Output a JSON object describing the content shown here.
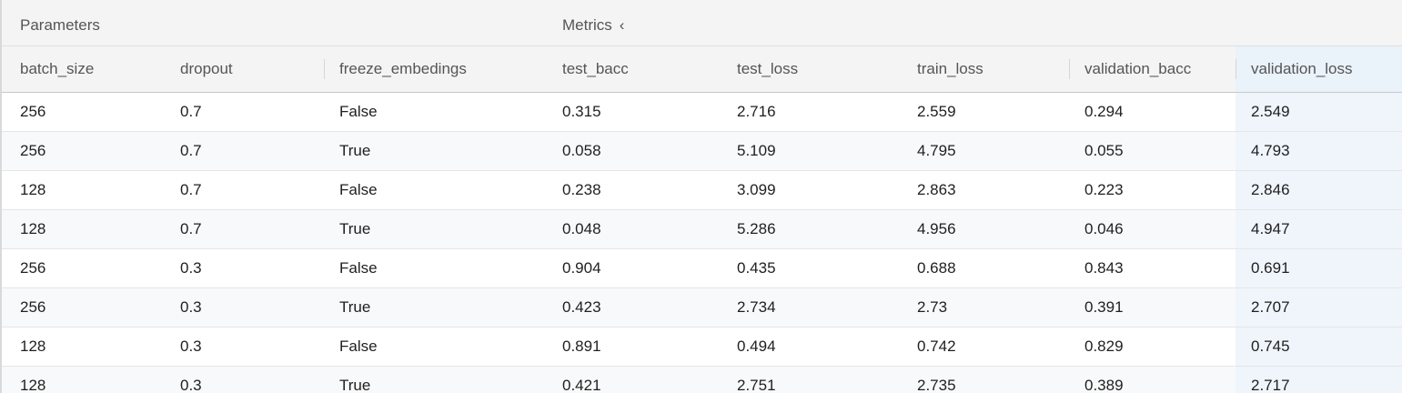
{
  "groups": {
    "parameters": "Parameters",
    "metrics": "Metrics",
    "metrics_toggle_icon": "chevron-left-icon"
  },
  "columns": [
    "batch_size",
    "dropout",
    "freeze_embedings",
    "test_bacc",
    "test_loss",
    "train_loss",
    "validation_bacc",
    "validation_loss"
  ],
  "rows": [
    [
      "256",
      "0.7",
      "False",
      "0.315",
      "2.716",
      "2.559",
      "0.294",
      "2.549"
    ],
    [
      "256",
      "0.7",
      "True",
      "0.058",
      "5.109",
      "4.795",
      "0.055",
      "4.793"
    ],
    [
      "128",
      "0.7",
      "False",
      "0.238",
      "3.099",
      "2.863",
      "0.223",
      "2.846"
    ],
    [
      "128",
      "0.7",
      "True",
      "0.048",
      "5.286",
      "4.956",
      "0.046",
      "4.947"
    ],
    [
      "256",
      "0.3",
      "False",
      "0.904",
      "0.435",
      "0.688",
      "0.843",
      "0.691"
    ],
    [
      "256",
      "0.3",
      "True",
      "0.423",
      "2.734",
      "2.73",
      "0.391",
      "2.707"
    ],
    [
      "128",
      "0.3",
      "False",
      "0.891",
      "0.494",
      "0.742",
      "0.829",
      "0.745"
    ],
    [
      "128",
      "0.3",
      "True",
      "0.421",
      "2.751",
      "2.735",
      "0.389",
      "2.717"
    ]
  ],
  "colors": {
    "header_bg": "#f4f4f4",
    "highlight_col": "#eff5fb",
    "alt_row": "#f8f9fb"
  }
}
